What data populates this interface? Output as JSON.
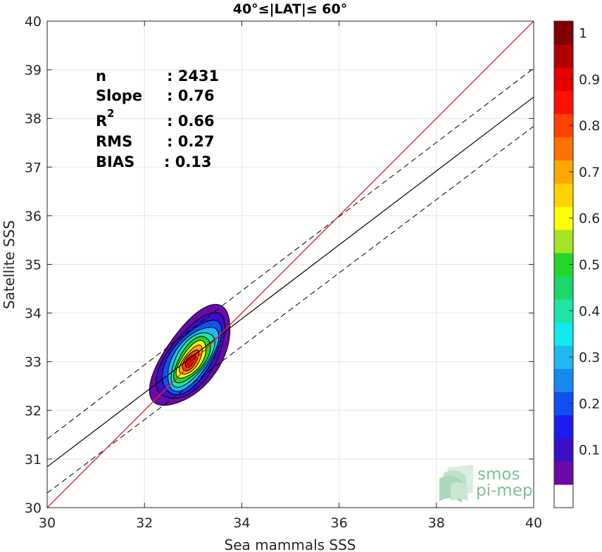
{
  "chart_data": {
    "type": "heatmap",
    "title": "40°≤|LAT|≤ 60°",
    "xlabel": "Sea mammals SSS",
    "ylabel": "Satellite SSS",
    "xlim": [
      30,
      40
    ],
    "ylim": [
      30,
      40
    ],
    "x_ticks": [
      "30",
      "32",
      "34",
      "36",
      "38",
      "40"
    ],
    "y_ticks": [
      "30",
      "31",
      "32",
      "33",
      "34",
      "35",
      "36",
      "37",
      "38",
      "39",
      "40"
    ],
    "grid": true,
    "stats": {
      "n_label": "n",
      "n_value": ": 2431",
      "slope_label": "Slope",
      "slope_value": ": 0.76",
      "r2_label": "R",
      "r2_sup": "2",
      "r2_value": ": 0.66",
      "rms_label": "RMS",
      "rms_value": ": 0.27",
      "bias_label": "BIAS",
      "bias_value": ": 0.13"
    },
    "lines": {
      "identity": {
        "color": "#e8262a",
        "x": [
          30,
          40
        ],
        "y": [
          30,
          40
        ]
      },
      "fit": {
        "color": "#000000",
        "x": [
          30,
          40
        ],
        "y": [
          30.84,
          38.44
        ]
      },
      "fit_upper": {
        "style": "dashed",
        "x": [
          30,
          40
        ],
        "y": [
          31.41,
          39.03
        ]
      },
      "fit_lower": {
        "style": "dashed",
        "x": [
          30,
          40
        ],
        "y": [
          30.3,
          37.84
        ]
      }
    },
    "density_contours": {
      "center": [
        32.92,
        33.0
      ],
      "angle_deg": 55,
      "levels": [
        0.05,
        0.1,
        0.2,
        0.3,
        0.4,
        0.5,
        0.6,
        0.7,
        0.8,
        0.9
      ],
      "semi_major": [
        1.2,
        1.02,
        0.88,
        0.76,
        0.65,
        0.55,
        0.45,
        0.35,
        0.25,
        0.15
      ],
      "semi_minor": [
        0.56,
        0.48,
        0.41,
        0.35,
        0.3,
        0.25,
        0.2,
        0.15,
        0.11,
        0.07
      ],
      "offset_dx": [
        0.05,
        0.05,
        0.05,
        0.06,
        0.06,
        0.06,
        0.05,
        0.04,
        0.03,
        0.02
      ],
      "offset_dy": [
        0.1,
        0.09,
        0.08,
        0.07,
        0.06,
        0.05,
        0.04,
        0.03,
        0.02,
        0.01
      ]
    },
    "colorbar": {
      "ticks": [
        "0.1",
        "0.2",
        "0.3",
        "0.4",
        "0.5",
        "0.6",
        "0.7",
        "0.8",
        "0.9",
        "1"
      ],
      "tick_values": [
        0.1,
        0.2,
        0.3,
        0.4,
        0.5,
        0.6,
        0.7,
        0.8,
        0.9,
        1.0
      ],
      "colors": [
        "#ffffff",
        "#6a0aa8",
        "#3a10c6",
        "#1c1cef",
        "#1050f0",
        "#1788f0",
        "#1eb8f2",
        "#12e8ee",
        "#1ee4a8",
        "#1cd86a",
        "#22d62a",
        "#a4e424",
        "#ffff00",
        "#ffd200",
        "#ffa600",
        "#ff7200",
        "#ff4200",
        "#ff1000",
        "#e60000",
        "#b00000",
        "#820000"
      ]
    }
  },
  "logo": {
    "line1": "smos",
    "line2": "pi-mep"
  }
}
